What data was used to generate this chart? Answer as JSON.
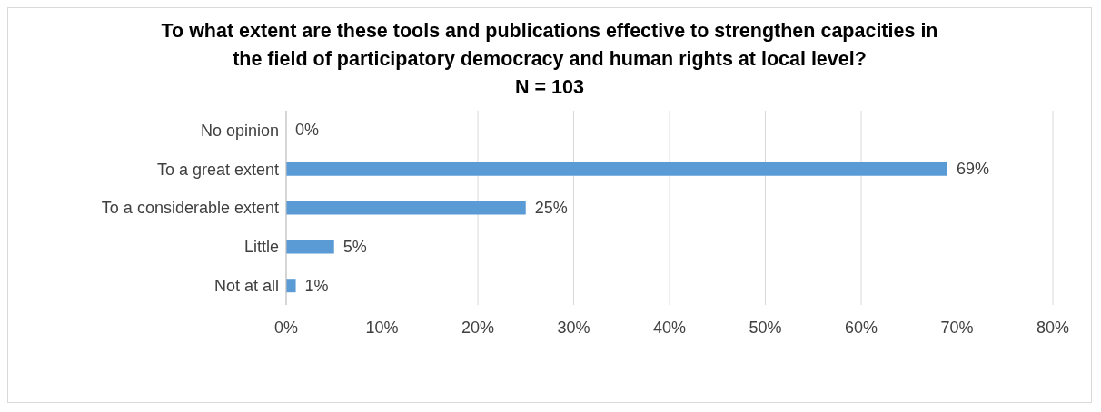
{
  "chart_data": {
    "type": "bar",
    "orientation": "horizontal",
    "title": "To what extent are these tools and publications effective to strengthen capacities in the field of participatory democracy and human rights at local level?",
    "subtitle": "N = 103",
    "categories": [
      "No opinion",
      "To a great extent",
      "To a considerable extent",
      "Little",
      "Not at all"
    ],
    "values": [
      0,
      69,
      25,
      5,
      1
    ],
    "value_labels": [
      "0%",
      "69%",
      "25%",
      "5%",
      "1%"
    ],
    "color": "#5b9bd5",
    "xlim": [
      0,
      80
    ],
    "xticks": [
      {
        "value": 0,
        "label": "0%"
      },
      {
        "value": 10,
        "label": "10%"
      },
      {
        "value": 20,
        "label": "20%"
      },
      {
        "value": 30,
        "label": "30%"
      },
      {
        "value": 40,
        "label": "40%"
      },
      {
        "value": 50,
        "label": "50%"
      },
      {
        "value": 60,
        "label": "60%"
      },
      {
        "value": 70,
        "label": "70%"
      },
      {
        "value": 80,
        "label": "80%"
      }
    ],
    "grid": "x",
    "legend": false
  }
}
